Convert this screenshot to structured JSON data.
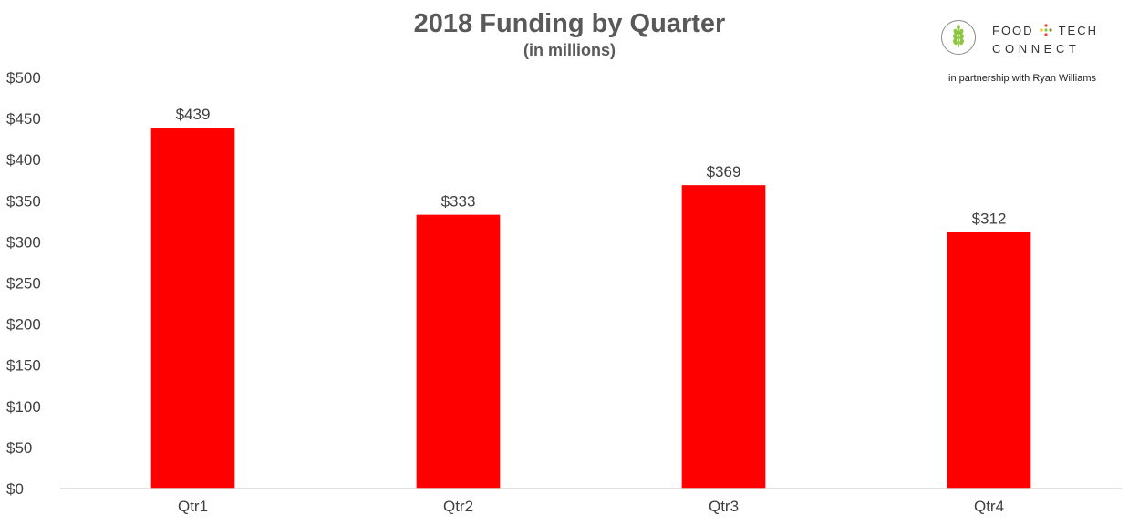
{
  "chart_data": {
    "type": "bar",
    "title": "2018 Funding by Quarter",
    "subtitle": "(in millions)",
    "categories": [
      "Qtr1",
      "Qtr2",
      "Qtr3",
      "Qtr4"
    ],
    "values": [
      439,
      333,
      369,
      312
    ],
    "data_labels": [
      "$439",
      "$333",
      "$369",
      "$312"
    ],
    "y_tick_labels": [
      "$0",
      "$50",
      "$100",
      "$150",
      "$200",
      "$250",
      "$300",
      "$350",
      "$400",
      "$450",
      "$500"
    ],
    "ylim": [
      0,
      500
    ],
    "xlabel": "",
    "ylabel": "",
    "grid": false,
    "bar_color": "#ff0000"
  },
  "logo": {
    "brand_top_left": "FOOD",
    "brand_top_right": "TECH",
    "brand_bottom": "CONNECT",
    "partnership": "in partnership with Ryan Williams",
    "icon": "wheat-icon",
    "colors": {
      "green": "#8cc63f",
      "red": "#e8412c",
      "yellow": "#f7b718",
      "olive": "#6d8f2f"
    }
  }
}
